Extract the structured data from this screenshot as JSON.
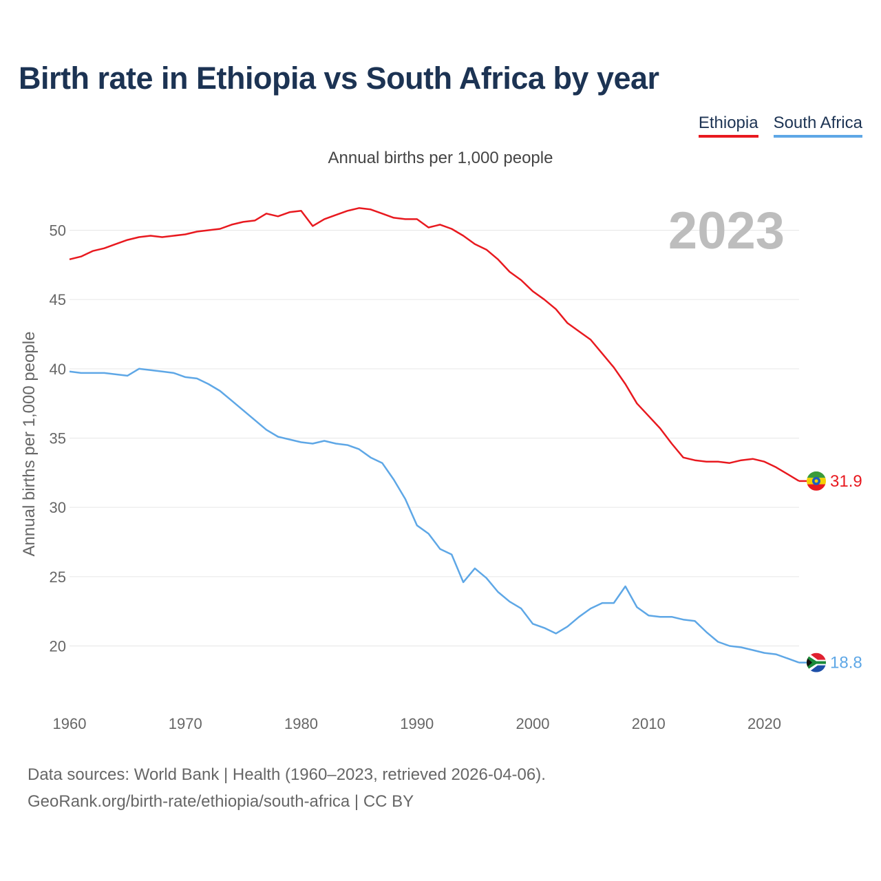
{
  "title": "Birth rate in Ethiopia vs South Africa by year",
  "subtitle": "Annual births per 1,000 people",
  "legend": [
    {
      "label": "Ethiopia",
      "color": "#e8191f"
    },
    {
      "label": "South Africa",
      "color": "#5ea7e6"
    }
  ],
  "footer": {
    "line1": "Data sources: World Bank | Health (1960–2023, retrieved 2026-04-06).",
    "line2": "GeoRank.org/birth-rate/ethiopia/south-africa | CC BY"
  },
  "chart_data": {
    "type": "line",
    "title": "Birth rate in Ethiopia vs South Africa by year",
    "xlabel": "",
    "ylabel": "Annual births per 1,000 people",
    "xlim": [
      1960,
      2023
    ],
    "ylim": [
      16.3,
      53.6
    ],
    "x_ticks": [
      1960,
      1970,
      1980,
      1990,
      2000,
      2010,
      2020
    ],
    "y_ticks": [
      20,
      25,
      30,
      35,
      40,
      45,
      50
    ],
    "grid": "horizontal",
    "year_label": "2023",
    "x": [
      1960,
      1961,
      1962,
      1963,
      1964,
      1965,
      1966,
      1967,
      1968,
      1969,
      1970,
      1971,
      1972,
      1973,
      1974,
      1975,
      1976,
      1977,
      1978,
      1979,
      1980,
      1981,
      1982,
      1983,
      1984,
      1985,
      1986,
      1987,
      1988,
      1989,
      1990,
      1991,
      1992,
      1993,
      1994,
      1995,
      1996,
      1997,
      1998,
      1999,
      2000,
      2001,
      2002,
      2003,
      2004,
      2005,
      2006,
      2007,
      2008,
      2009,
      2010,
      2011,
      2012,
      2013,
      2014,
      2015,
      2016,
      2017,
      2018,
      2019,
      2020,
      2021,
      2022,
      2023
    ],
    "series": [
      {
        "name": "Ethiopia",
        "color": "#e8191f",
        "end_label": "31.9",
        "values": [
          47.9,
          48.1,
          48.5,
          48.7,
          49.0,
          49.3,
          49.5,
          49.6,
          49.5,
          49.6,
          49.7,
          49.9,
          50.0,
          50.1,
          50.4,
          50.6,
          50.7,
          51.2,
          51.0,
          51.3,
          51.4,
          50.3,
          50.8,
          51.1,
          51.4,
          51.6,
          51.5,
          51.2,
          50.9,
          50.8,
          50.8,
          50.2,
          50.4,
          50.1,
          49.6,
          49.0,
          48.6,
          47.9,
          47.0,
          46.4,
          45.6,
          45.0,
          44.3,
          43.3,
          42.7,
          42.1,
          41.1,
          40.1,
          38.9,
          37.5,
          36.6,
          35.7,
          34.6,
          33.6,
          33.4,
          33.3,
          33.3,
          33.2,
          33.4,
          33.5,
          33.3,
          32.9,
          32.4,
          31.9
        ]
      },
      {
        "name": "South Africa",
        "color": "#5ea7e6",
        "end_label": "18.8",
        "values": [
          39.8,
          39.7,
          39.7,
          39.7,
          39.6,
          39.5,
          40.0,
          39.9,
          39.8,
          39.7,
          39.4,
          39.3,
          38.9,
          38.4,
          37.7,
          37.0,
          36.3,
          35.6,
          35.1,
          34.9,
          34.7,
          34.6,
          34.8,
          34.6,
          34.5,
          34.2,
          33.6,
          33.2,
          32.0,
          30.6,
          28.7,
          28.1,
          27.0,
          26.6,
          24.6,
          25.6,
          24.9,
          23.9,
          23.2,
          22.7,
          21.6,
          21.3,
          20.9,
          21.4,
          22.1,
          22.7,
          23.1,
          23.1,
          24.3,
          22.8,
          22.2,
          22.1,
          22.1,
          21.9,
          21.8,
          21.0,
          20.3,
          20.0,
          19.9,
          19.7,
          19.5,
          19.4,
          19.1,
          18.8
        ]
      }
    ]
  }
}
